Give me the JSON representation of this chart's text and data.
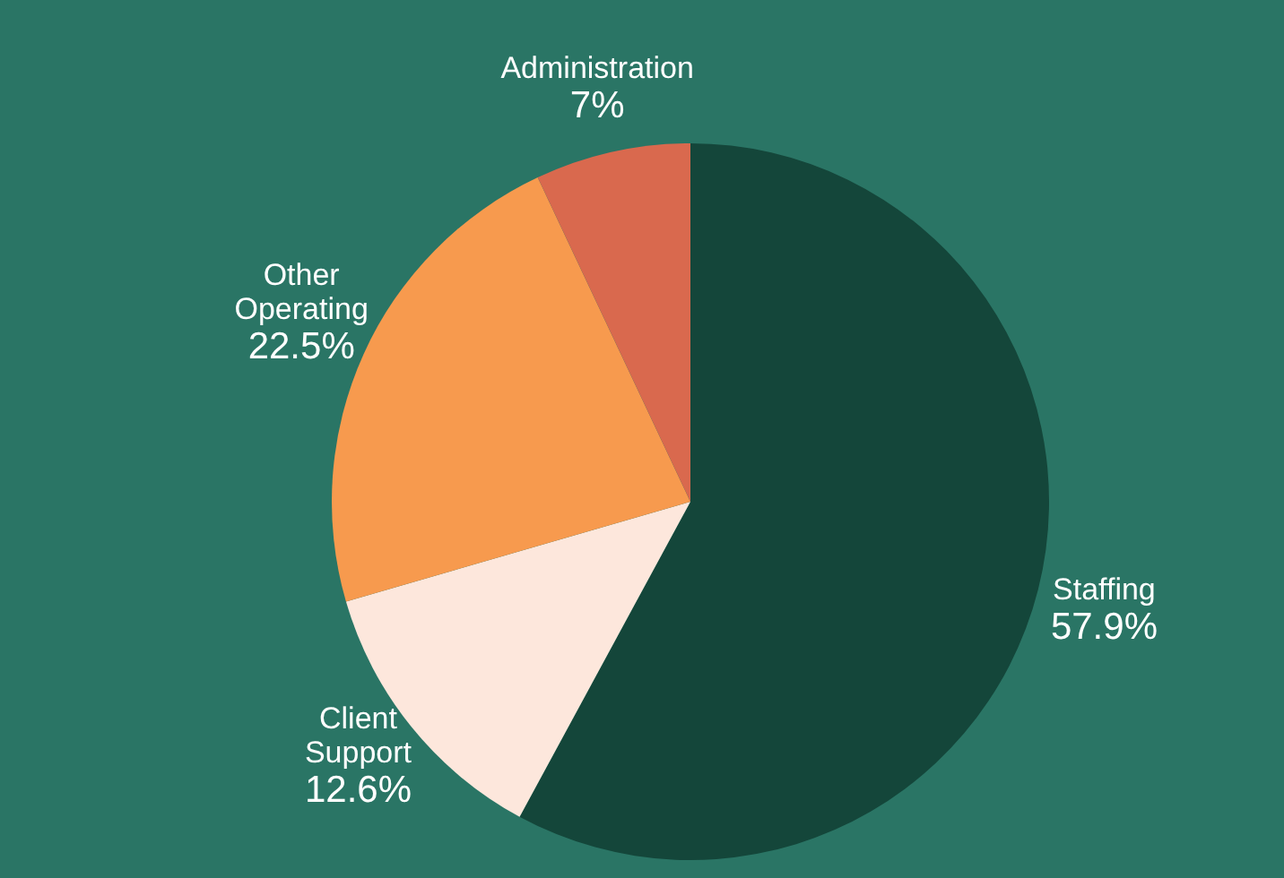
{
  "chart_data": {
    "type": "pie",
    "categories": [
      "Staffing",
      "Client Support",
      "Other Operating",
      "Administration"
    ],
    "values": [
      57.9,
      12.6,
      22.5,
      7
    ],
    "value_labels": [
      "57.9%",
      "12.6%",
      "22.5%",
      "7%"
    ],
    "colors": [
      "#14463a",
      "#fde7dc",
      "#f79a4e",
      "#d9694e"
    ]
  }
}
